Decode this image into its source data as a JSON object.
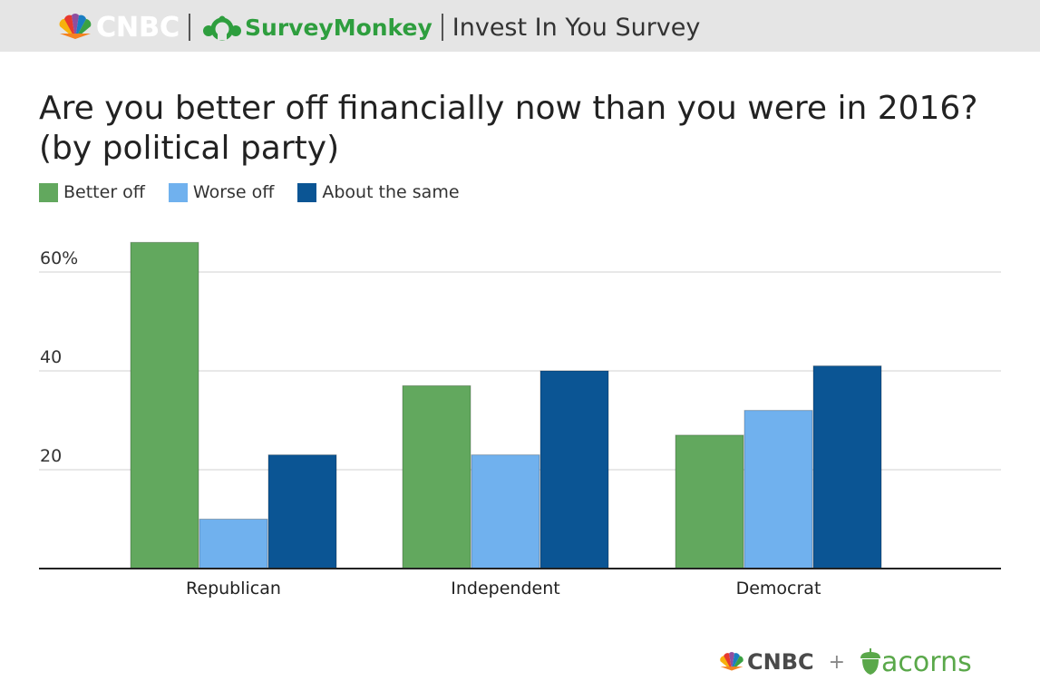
{
  "header": {
    "cnbc_logo_text": "CNBC",
    "surveymonkey_logo_text": "SurveyMonkey",
    "survey_name": "Invest In You Survey"
  },
  "footer": {
    "cnbc_logo_text": "CNBC",
    "plus": "+",
    "acorns_logo_text": "acorns"
  },
  "colors": {
    "better_off": "#62a85e",
    "worse_off": "#70b1ee",
    "about_same": "#0b5594",
    "gridline": "#d0d0d0",
    "axis": "#222222"
  },
  "chart_data": {
    "type": "bar",
    "title": "Are you better off financially now than you were in 2016?",
    "subtitle": "(by political party)",
    "categories": [
      "Republican",
      "Independent",
      "Democrat"
    ],
    "series": [
      {
        "name": "Better off",
        "values": [
          66,
          37,
          27
        ]
      },
      {
        "name": "Worse off",
        "values": [
          10,
          23,
          32
        ]
      },
      {
        "name": "About the same",
        "values": [
          23,
          40,
          41
        ]
      }
    ],
    "ylim": [
      0,
      66
    ],
    "yticks": [
      20,
      40,
      60
    ],
    "ytick_labels": [
      "20",
      "40",
      "60%"
    ],
    "legend_position": "top-left",
    "grid": true
  }
}
